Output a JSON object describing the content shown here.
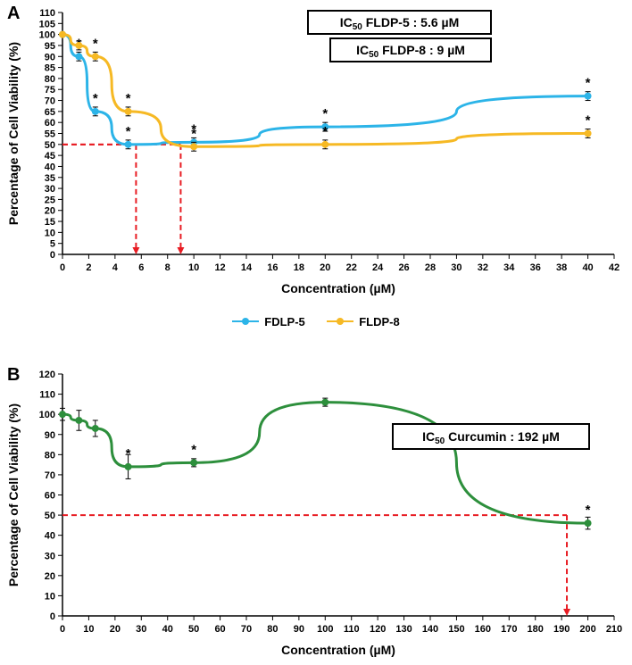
{
  "panelA": {
    "type": "line",
    "label": "A",
    "xlabel": "Concentration (µM)",
    "ylabel": "Percentage of Cell Viability (%)",
    "xlim": [
      0,
      42
    ],
    "ylim": [
      0,
      110
    ],
    "xtick_step": 2,
    "ytick_step": 5,
    "xticks": [
      0,
      2,
      4,
      6,
      8,
      10,
      12,
      14,
      16,
      18,
      20,
      22,
      24,
      26,
      28,
      30,
      32,
      34,
      36,
      38,
      40,
      42
    ],
    "yticks": [
      0,
      5,
      10,
      15,
      20,
      25,
      30,
      35,
      40,
      45,
      50,
      55,
      60,
      65,
      70,
      75,
      80,
      85,
      90,
      95,
      100,
      105,
      110
    ],
    "label_fontsize": 14,
    "tick_fontsize": 11,
    "series": [
      {
        "name": "FDLP-5",
        "color": "#2cb4e8",
        "line_width": 3,
        "marker": "circle",
        "marker_size": 7,
        "x": [
          0,
          1.25,
          2.5,
          5,
          10,
          20,
          40
        ],
        "y": [
          100,
          90,
          65,
          50,
          51,
          58,
          72
        ],
        "err": [
          0,
          2,
          2,
          2,
          2,
          2,
          2
        ],
        "stars": [
          false,
          true,
          true,
          true,
          true,
          true,
          true
        ]
      },
      {
        "name": "FLDP-8",
        "color": "#f6b924",
        "line_width": 3,
        "marker": "circle",
        "marker_size": 7,
        "x": [
          0,
          1.25,
          2.5,
          5,
          10,
          20,
          40
        ],
        "y": [
          100,
          95,
          90,
          65,
          49,
          50,
          55
        ],
        "err": [
          0,
          2,
          2,
          2,
          2,
          2,
          2
        ],
        "stars": [
          false,
          false,
          true,
          true,
          true,
          true,
          true
        ]
      }
    ],
    "ic50_lines": [
      {
        "x": 5.6,
        "y": 50,
        "color": "#e81c23"
      },
      {
        "x": 9,
        "y": 50,
        "color": "#e81c23"
      }
    ],
    "annotations": [
      {
        "text": "IC₅₀ FLDP-5 : 5.6 µM",
        "box": true
      },
      {
        "text": "IC₅₀ FLDP-8 : 9 µM",
        "box": true
      }
    ]
  },
  "legend": {
    "items": [
      {
        "label": "FDLP-5",
        "color": "#2cb4e8"
      },
      {
        "label": "FLDP-8",
        "color": "#f6b924"
      }
    ]
  },
  "panelB": {
    "type": "line",
    "label": "B",
    "xlabel": "Concentration (µM)",
    "ylabel": "Percentage of Cell Viability (%)",
    "xlim": [
      0,
      210
    ],
    "ylim": [
      0,
      120
    ],
    "xtick_step": 10,
    "ytick_step": 10,
    "xticks": [
      0,
      10,
      20,
      30,
      40,
      50,
      60,
      70,
      80,
      90,
      100,
      110,
      120,
      130,
      140,
      150,
      160,
      170,
      180,
      190,
      200,
      210
    ],
    "yticks": [
      0,
      10,
      20,
      30,
      40,
      50,
      60,
      70,
      80,
      90,
      100,
      110,
      120
    ],
    "label_fontsize": 14,
    "tick_fontsize": 11,
    "series": [
      {
        "name": "Curcumin",
        "color": "#2d8f3c",
        "line_width": 3,
        "marker": "circle",
        "marker_size": 7,
        "x": [
          0,
          6.25,
          12.5,
          25,
          50,
          100,
          200
        ],
        "y": [
          100,
          97,
          93,
          74,
          76,
          106,
          46
        ],
        "err": [
          3,
          5,
          4,
          6,
          2,
          2,
          3
        ],
        "stars": [
          false,
          false,
          false,
          true,
          true,
          false,
          true
        ]
      }
    ],
    "ic50_lines": [
      {
        "x": 192,
        "y": 50,
        "color": "#e81c23"
      }
    ],
    "annotations": [
      {
        "text": "IC₅₀ Curcumin : 192 µM",
        "box": true
      }
    ]
  },
  "colors": {
    "axis": "#000000",
    "background": "#ffffff",
    "dash": "#e81c23"
  }
}
